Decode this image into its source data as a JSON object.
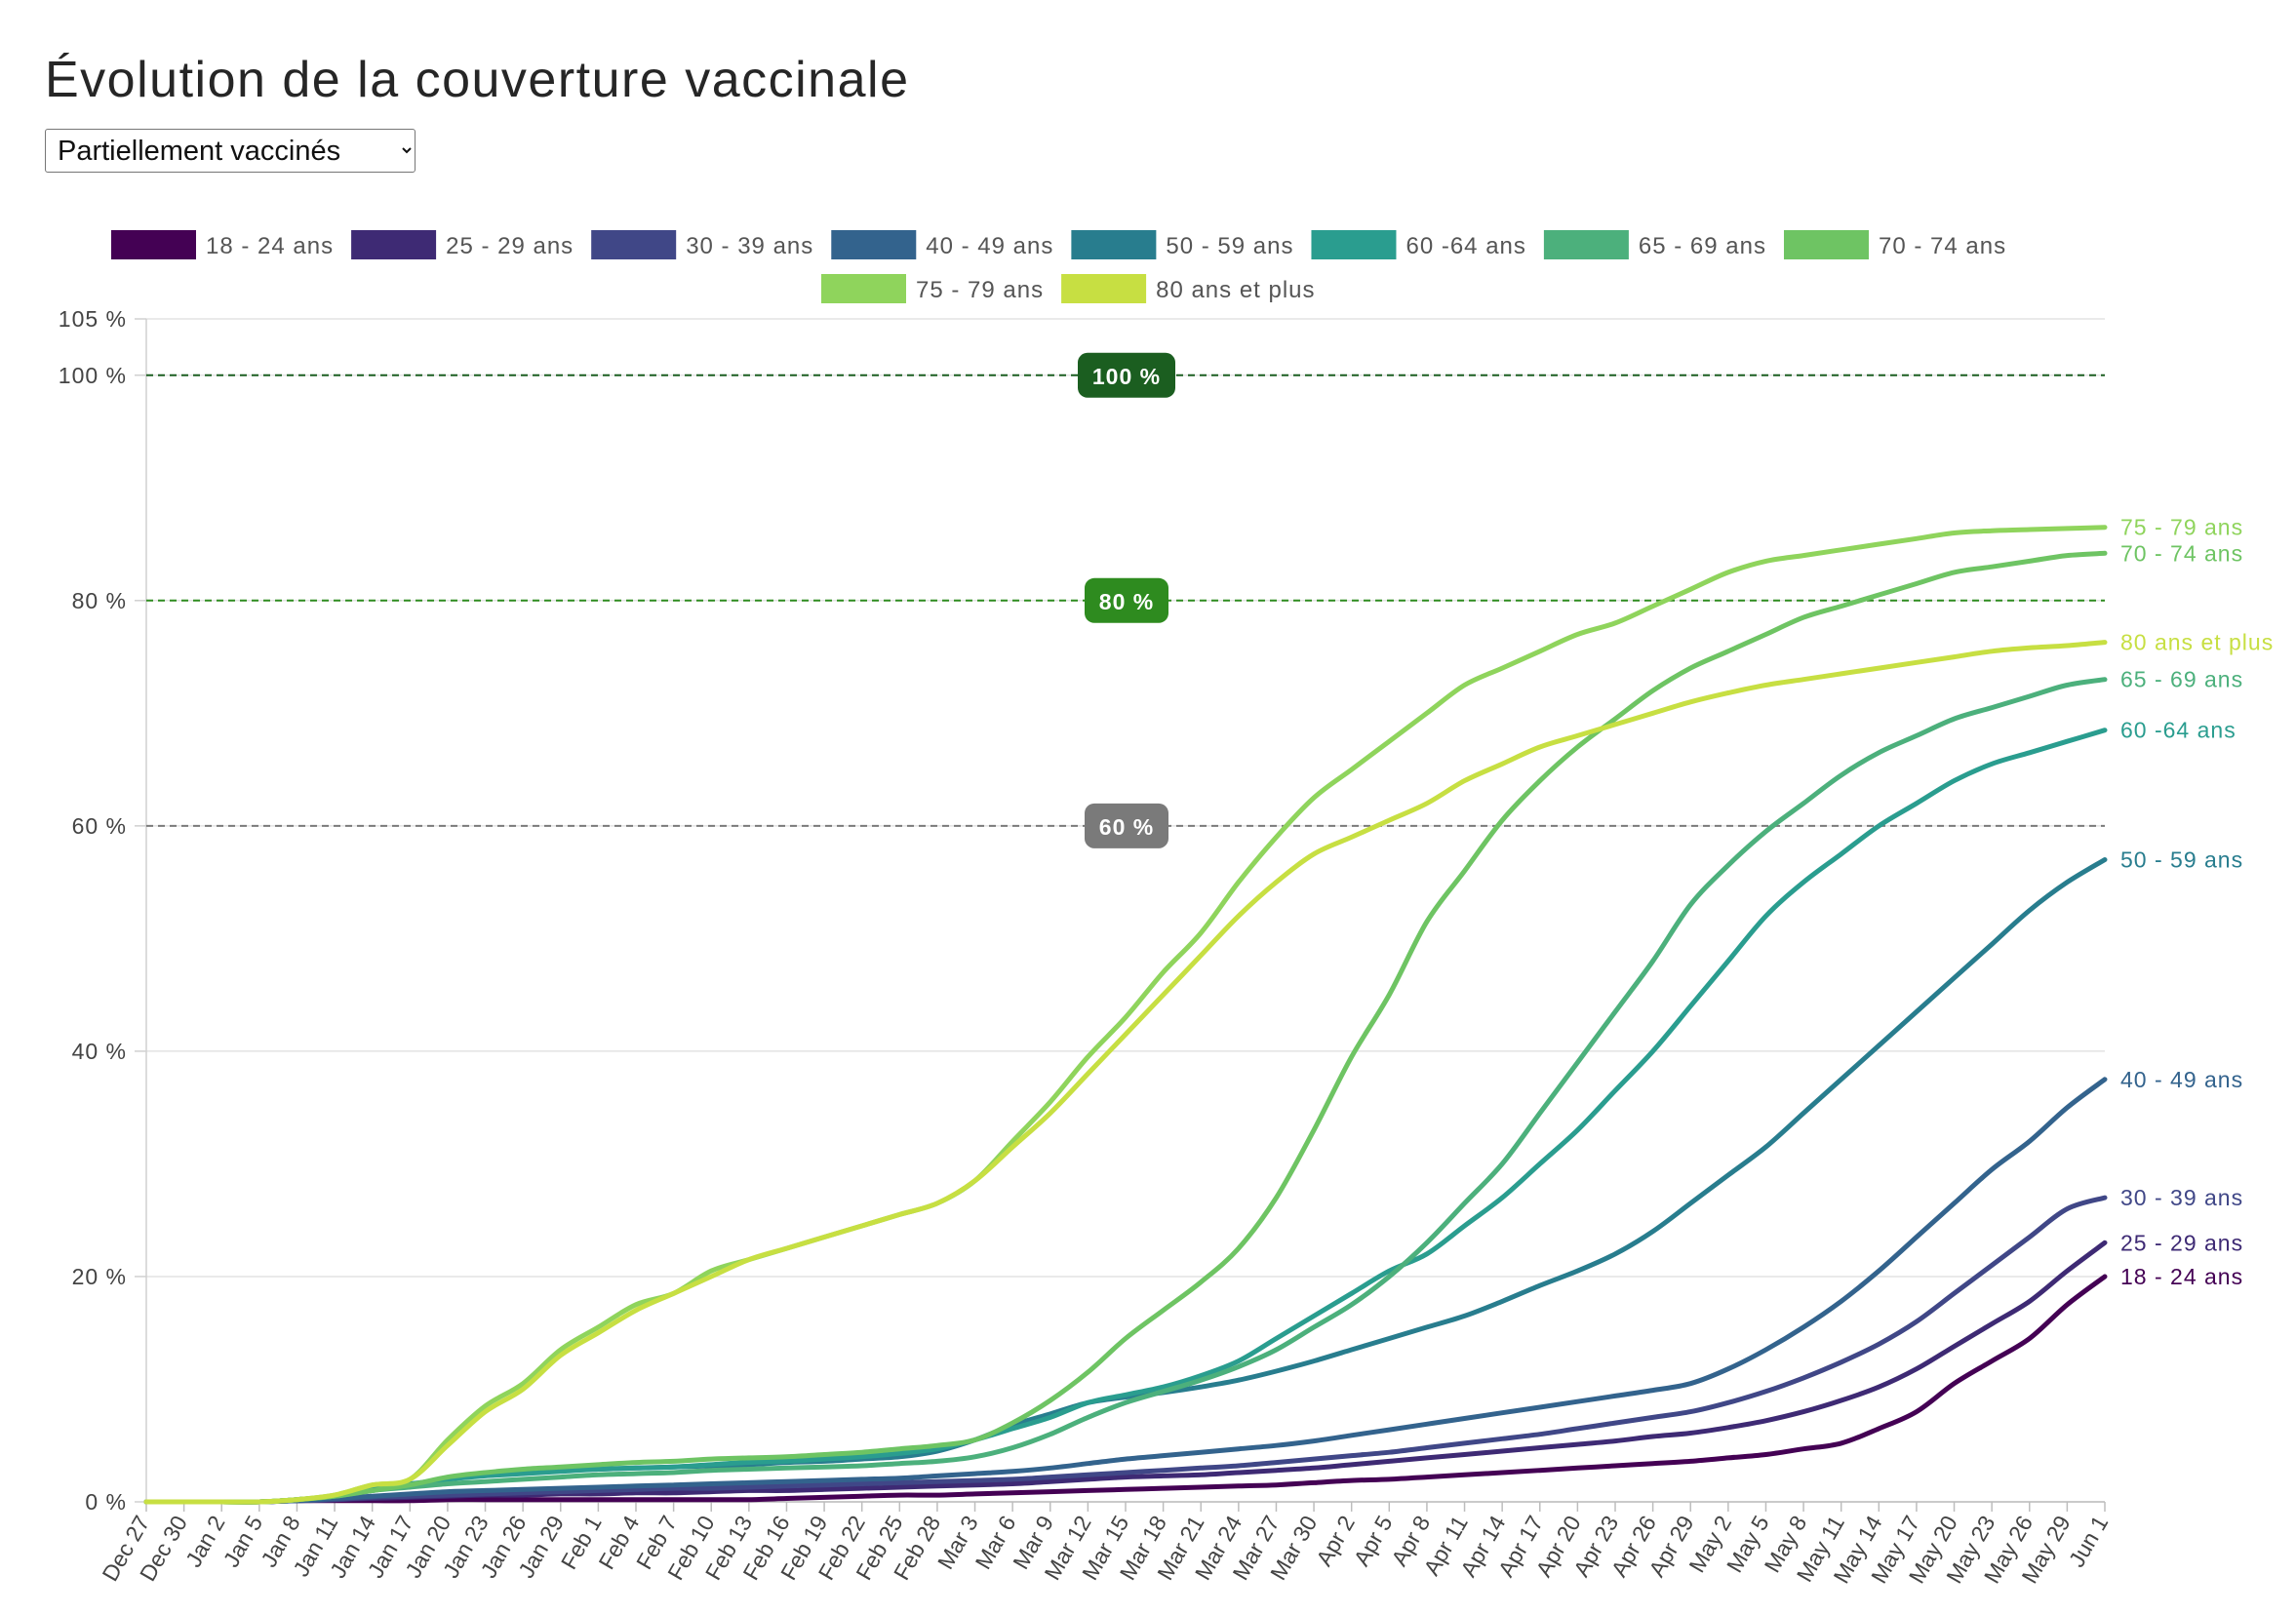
{
  "page": {
    "title": "Évolution de la couverture vaccinale",
    "select": {
      "selected": "Partiellement vaccinés",
      "options": [
        "Partiellement vaccinés"
      ]
    }
  },
  "colors": {
    "grid": "#e3e3e3",
    "axis": "#d0d0d0",
    "tick_text": "#444444",
    "ref_100": "#1b5e20",
    "ref_80": "#2e8b1f",
    "ref_60": "#7a7a7a"
  },
  "chart_data": {
    "type": "line",
    "title": "Évolution de la couverture vaccinale",
    "xlabel": "",
    "ylabel": "",
    "ylim": [
      0,
      105
    ],
    "yticks": [
      0,
      20,
      40,
      60,
      80,
      100,
      105
    ],
    "ytick_labels": [
      "0 %",
      "20 %",
      "40 %",
      "60 %",
      "80 %",
      "100 %",
      "105 %"
    ],
    "grid": true,
    "legend_position": "top",
    "x_tick_labels": [
      "Dec 27",
      "Dec 30",
      "Jan 2",
      "Jan 5",
      "Jan 8",
      "Jan 11",
      "Jan 14",
      "Jan 17",
      "Jan 20",
      "Jan 23",
      "Jan 26",
      "Jan 29",
      "Feb 1",
      "Feb 4",
      "Feb 7",
      "Feb 10",
      "Feb 13",
      "Feb 16",
      "Feb 19",
      "Feb 22",
      "Feb 25",
      "Feb 28",
      "Mar 3",
      "Mar 6",
      "Mar 9",
      "Mar 12",
      "Mar 15",
      "Mar 18",
      "Mar 21",
      "Mar 24",
      "Mar 27",
      "Mar 30",
      "Apr 2",
      "Apr 5",
      "Apr 8",
      "Apr 11",
      "Apr 14",
      "Apr 17",
      "Apr 20",
      "Apr 23",
      "Apr 26",
      "Apr 29",
      "May 2",
      "May 5",
      "May 8",
      "May 11",
      "May 14",
      "May 17",
      "May 20",
      "May 23",
      "May 26",
      "May 29",
      "Jun 1"
    ],
    "reference_lines": [
      {
        "value": 100,
        "label": "100 %",
        "color": "#1b5e20",
        "dashed": true
      },
      {
        "value": 80,
        "label": "80 %",
        "color": "#2e8b1f",
        "dashed": true
      },
      {
        "value": 60,
        "label": "60 %",
        "color": "#7a7a7a",
        "dashed": true
      }
    ],
    "x_points": "one value per tick label (every 3 days, Dec 27 to Jun 1)",
    "series": [
      {
        "name": "18 - 24 ans",
        "color": "#440154",
        "end_label": "18 - 24 ans",
        "values": [
          0,
          0,
          0,
          0,
          0.1,
          0.1,
          0.1,
          0.1,
          0.2,
          0.2,
          0.2,
          0.2,
          0.2,
          0.2,
          0.2,
          0.2,
          0.2,
          0.3,
          0.4,
          0.5,
          0.6,
          0.6,
          0.7,
          0.8,
          0.9,
          1.0,
          1.1,
          1.2,
          1.3,
          1.4,
          1.5,
          1.7,
          1.9,
          2.0,
          2.2,
          2.4,
          2.6,
          2.8,
          3.0,
          3.2,
          3.4,
          3.6,
          3.9,
          4.2,
          4.7,
          5.2,
          6.5,
          8.0,
          10.5,
          12.5,
          14.5,
          17.5,
          20.0
        ]
      },
      {
        "name": "25 - 29 ans",
        "color": "#3e2a74",
        "end_label": "25 - 29 ans",
        "values": [
          0,
          0,
          0,
          0,
          0.1,
          0.2,
          0.3,
          0.4,
          0.5,
          0.6,
          0.6,
          0.7,
          0.7,
          0.8,
          0.8,
          0.9,
          1.0,
          1.0,
          1.1,
          1.2,
          1.3,
          1.4,
          1.5,
          1.6,
          1.8,
          2.0,
          2.2,
          2.3,
          2.4,
          2.6,
          2.8,
          3.0,
          3.3,
          3.6,
          3.9,
          4.2,
          4.5,
          4.8,
          5.1,
          5.4,
          5.8,
          6.1,
          6.6,
          7.2,
          8.0,
          9.0,
          10.2,
          11.8,
          13.8,
          15.8,
          17.8,
          20.5,
          23.0
        ]
      },
      {
        "name": "30 - 39 ans",
        "color": "#404787",
        "end_label": "30 - 39 ans",
        "values": [
          0,
          0,
          0,
          0,
          0.1,
          0.2,
          0.4,
          0.5,
          0.6,
          0.7,
          0.8,
          0.9,
          1.0,
          1.1,
          1.2,
          1.2,
          1.3,
          1.4,
          1.5,
          1.6,
          1.7,
          1.8,
          1.9,
          2.0,
          2.2,
          2.4,
          2.6,
          2.8,
          3.0,
          3.2,
          3.5,
          3.8,
          4.1,
          4.4,
          4.8,
          5.2,
          5.6,
          6.0,
          6.5,
          7.0,
          7.5,
          8.0,
          8.8,
          9.8,
          11.0,
          12.4,
          14.0,
          16.0,
          18.5,
          21.0,
          23.5,
          26.0,
          27.0
        ]
      },
      {
        "name": "40 - 49 ans",
        "color": "#33638d",
        "end_label": "40 - 49 ans",
        "values": [
          0,
          0,
          0,
          0,
          0.1,
          0.3,
          0.5,
          0.7,
          0.9,
          1.0,
          1.1,
          1.2,
          1.3,
          1.4,
          1.5,
          1.6,
          1.7,
          1.8,
          1.9,
          2.0,
          2.1,
          2.3,
          2.5,
          2.7,
          3.0,
          3.4,
          3.8,
          4.1,
          4.4,
          4.7,
          5.0,
          5.4,
          5.9,
          6.4,
          6.9,
          7.4,
          7.9,
          8.4,
          8.9,
          9.4,
          9.9,
          10.5,
          11.8,
          13.5,
          15.5,
          17.8,
          20.5,
          23.5,
          26.5,
          29.5,
          32.0,
          35.0,
          37.5
        ]
      },
      {
        "name": "50 - 59 ans",
        "color": "#287d8e",
        "end_label": "50 - 59 ans",
        "values": [
          0,
          0,
          0,
          0,
          0.2,
          0.5,
          1.0,
          1.5,
          2.0,
          2.4,
          2.6,
          2.8,
          2.9,
          3.0,
          3.1,
          3.2,
          3.3,
          3.5,
          3.6,
          3.8,
          4.0,
          4.5,
          5.5,
          6.8,
          7.8,
          8.8,
          9.3,
          9.7,
          10.2,
          10.8,
          11.6,
          12.5,
          13.5,
          14.5,
          15.5,
          16.5,
          17.8,
          19.2,
          20.5,
          22.0,
          24.0,
          26.5,
          29.0,
          31.5,
          34.5,
          37.5,
          40.5,
          43.5,
          46.5,
          49.5,
          52.5,
          55.0,
          57.0
        ]
      },
      {
        "name": "60 -64 ans",
        "color": "#2a9d8f",
        "end_label": "60 -64 ans",
        "values": [
          0,
          0,
          0,
          0,
          0.2,
          0.5,
          1.2,
          1.6,
          2.0,
          2.3,
          2.5,
          2.7,
          2.9,
          3.0,
          3.1,
          3.3,
          3.5,
          3.6,
          3.8,
          4.0,
          4.3,
          4.7,
          5.5,
          6.5,
          7.5,
          8.8,
          9.5,
          10.2,
          11.2,
          12.5,
          14.5,
          16.5,
          18.5,
          20.5,
          22.0,
          24.5,
          27.0,
          30.0,
          33.0,
          36.5,
          40.0,
          44.0,
          48.0,
          52.0,
          55.0,
          57.5,
          60.0,
          62.0,
          64.0,
          65.5,
          66.5,
          67.5,
          68.5
        ]
      },
      {
        "name": "65 - 69 ans",
        "color": "#4cb07c",
        "end_label": "65 - 69 ans",
        "values": [
          0,
          0,
          0,
          0,
          0.2,
          0.5,
          1.0,
          1.3,
          1.6,
          1.8,
          2.0,
          2.2,
          2.4,
          2.5,
          2.6,
          2.8,
          2.9,
          3.0,
          3.1,
          3.2,
          3.4,
          3.6,
          4.0,
          4.8,
          6.0,
          7.5,
          8.8,
          9.8,
          10.8,
          12.0,
          13.5,
          15.5,
          17.5,
          20.0,
          23.0,
          26.5,
          30.0,
          34.5,
          39.0,
          43.5,
          48.0,
          53.0,
          56.5,
          59.5,
          62.0,
          64.5,
          66.5,
          68.0,
          69.5,
          70.5,
          71.5,
          72.5,
          73.0
        ]
      },
      {
        "name": "70 - 74 ans",
        "color": "#6ec463",
        "end_label": "70 - 74 ans",
        "values": [
          0,
          0,
          0,
          0,
          0.2,
          0.5,
          1.0,
          1.5,
          2.2,
          2.6,
          2.9,
          3.1,
          3.3,
          3.5,
          3.6,
          3.8,
          3.9,
          4.0,
          4.2,
          4.4,
          4.7,
          5.0,
          5.5,
          7.0,
          9.0,
          11.5,
          14.5,
          17.0,
          19.5,
          22.5,
          27.0,
          33.0,
          39.5,
          45.0,
          51.5,
          56.0,
          60.5,
          64.0,
          67.0,
          69.5,
          72.0,
          74.0,
          75.5,
          77.0,
          78.5,
          79.5,
          80.5,
          81.5,
          82.5,
          83.0,
          83.5,
          84.0,
          84.2
        ]
      },
      {
        "name": "75 - 79 ans",
        "color": "#8fd45c",
        "end_label": "75 - 79 ans",
        "values": [
          0,
          0,
          0,
          0,
          0.2,
          0.6,
          1.5,
          2.0,
          5.5,
          8.5,
          10.5,
          13.5,
          15.5,
          17.5,
          18.5,
          20.5,
          21.5,
          22.5,
          23.5,
          24.5,
          25.5,
          26.5,
          28.5,
          32.0,
          35.5,
          39.5,
          43.0,
          47.0,
          50.5,
          55.0,
          59.0,
          62.5,
          65.0,
          67.5,
          70.0,
          72.5,
          74.0,
          75.5,
          77.0,
          78.0,
          79.5,
          81.0,
          82.5,
          83.5,
          84.0,
          84.5,
          85.0,
          85.5,
          86.0,
          86.2,
          86.3,
          86.4,
          86.5
        ]
      },
      {
        "name": "80 ans et plus",
        "color": "#c7df42",
        "end_label": "80 ans et plus",
        "values": [
          0,
          0,
          0,
          0,
          0.2,
          0.6,
          1.5,
          2.0,
          5.0,
          8.0,
          10.0,
          13.0,
          15.0,
          17.0,
          18.5,
          20.0,
          21.5,
          22.5,
          23.5,
          24.5,
          25.5,
          26.5,
          28.5,
          31.5,
          34.5,
          38.0,
          41.5,
          45.0,
          48.5,
          52.0,
          55.0,
          57.5,
          59.0,
          60.5,
          62.0,
          64.0,
          65.5,
          67.0,
          68.0,
          69.0,
          70.0,
          71.0,
          71.8,
          72.5,
          73.0,
          73.5,
          74.0,
          74.5,
          75.0,
          75.5,
          75.8,
          76.0,
          76.3
        ]
      }
    ]
  }
}
